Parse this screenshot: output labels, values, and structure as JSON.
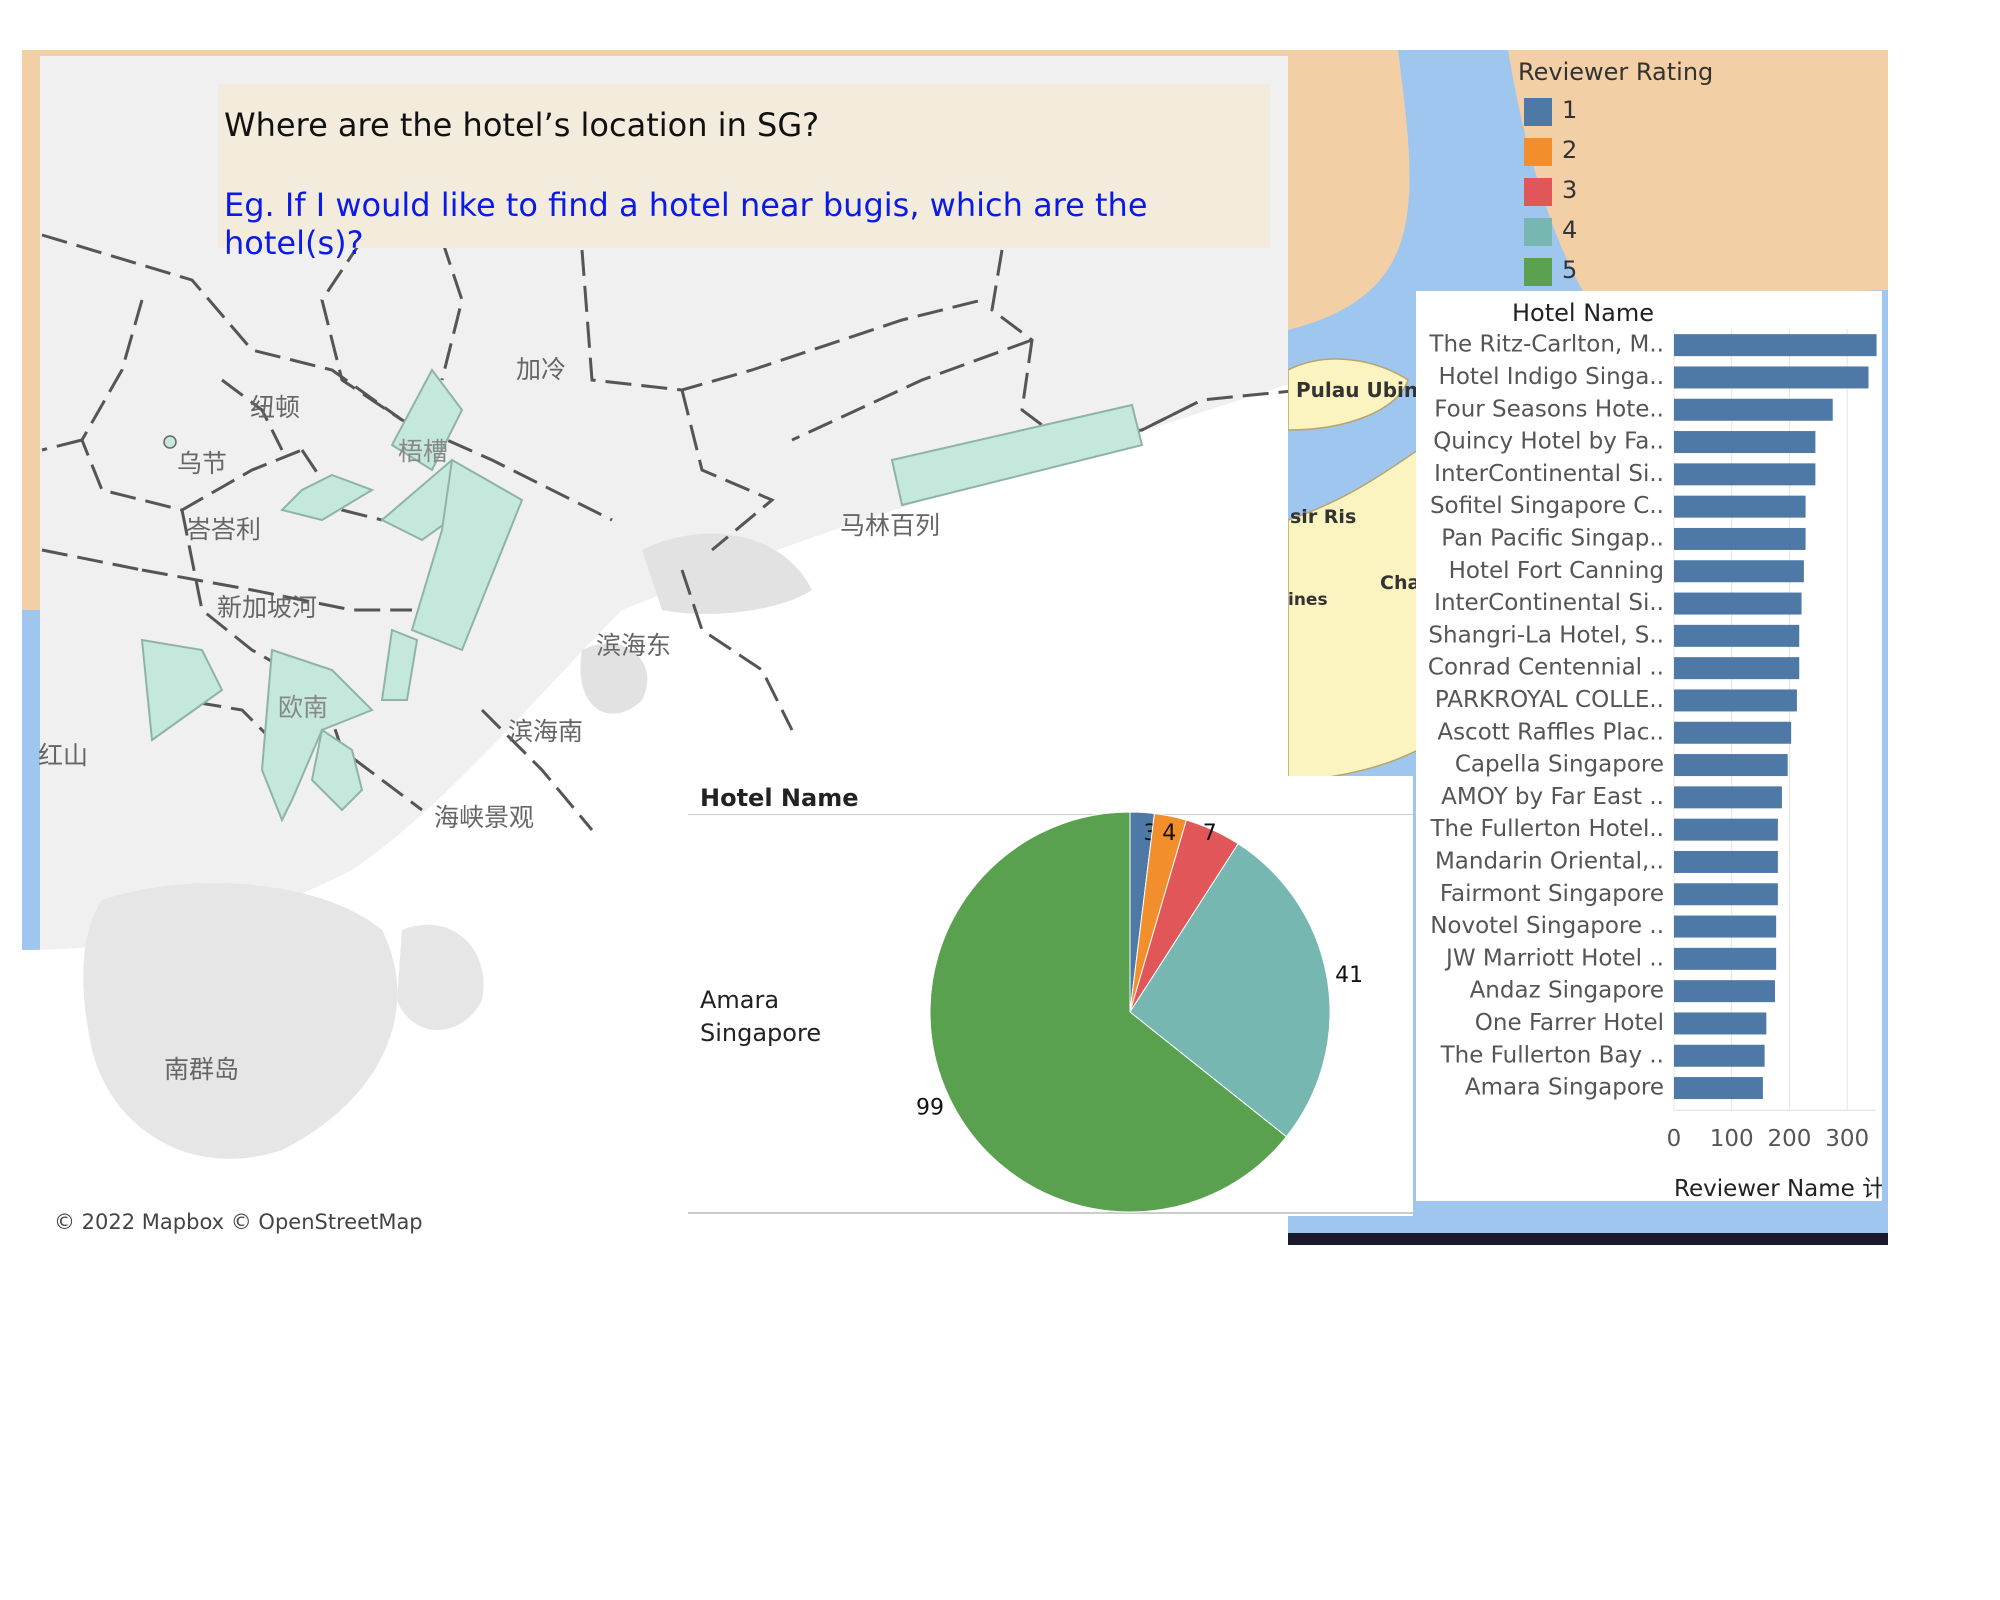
{
  "question": {
    "title": "Where are the hotel’s location in SG?",
    "example": "Eg. If I would like to find a hotel near bugis, which are the hotel(s)?"
  },
  "map": {
    "attribution": "© 2022 Mapbox © OpenStreetMap",
    "place_labels": [
      {
        "id": "newton",
        "text": "纽顿"
      },
      {
        "id": "orchard",
        "text": "乌节"
      },
      {
        "id": "tanglin",
        "text": "峇峇利"
      },
      {
        "id": "kallang",
        "text": "加冷"
      },
      {
        "id": "rochor",
        "text": "梧槽"
      },
      {
        "id": "singapore_river",
        "text": "新加坡河"
      },
      {
        "id": "marine_parade",
        "text": "马林百列"
      },
      {
        "id": "marina_east",
        "text": "滨海东"
      },
      {
        "id": "marina_south",
        "text": "滨海南"
      },
      {
        "id": "outram",
        "text": "欧南"
      },
      {
        "id": "bukit_merah",
        "text": "红山"
      },
      {
        "id": "straits_view",
        "text": "海峡景观"
      },
      {
        "id": "southern_islands",
        "text": "南群岛"
      }
    ],
    "inset_labels": [
      "Pulau Ubin",
      "sir Ris",
      "Cha",
      "ines"
    ]
  },
  "colors": {
    "rating_1": "#4e79a7",
    "rating_2": "#f28e2b",
    "rating_3": "#e15759",
    "rating_4": "#76b7b2",
    "rating_5": "#59a14f",
    "bar": "#4e79a7",
    "map_water": "#9ec6ef",
    "map_land": "#f3cfa6",
    "map_base": "#f0f0f0",
    "region_fill": "#c5e8dc",
    "question_blue": "#0a1be8",
    "question_box": "#f3ecdd"
  },
  "legend": {
    "title": "Reviewer Rating",
    "items": [
      {
        "label": "1",
        "color": "#4e79a7"
      },
      {
        "label": "2",
        "color": "#f28e2b"
      },
      {
        "label": "3",
        "color": "#e15759"
      },
      {
        "label": "4",
        "color": "#76b7b2"
      },
      {
        "label": "5",
        "color": "#59a14f"
      }
    ]
  },
  "pie_panel": {
    "header": "Hotel Name",
    "row_label": "Amara Singapore"
  },
  "bar_panel": {
    "header": "Hotel Name"
  },
  "chart_data": [
    {
      "type": "pie",
      "title": "",
      "category": "Amara Singapore",
      "slices": [
        {
          "label": "1",
          "value": 3,
          "color": "#4e79a7"
        },
        {
          "label": "2",
          "value": 4,
          "color": "#f28e2b"
        },
        {
          "label": "3",
          "value": 7,
          "color": "#e15759"
        },
        {
          "label": "4",
          "value": 41,
          "color": "#76b7b2"
        },
        {
          "label": "5",
          "value": 99,
          "color": "#59a14f"
        }
      ],
      "data_labels": [
        "3",
        "4",
        "7",
        "41",
        "99"
      ]
    },
    {
      "type": "bar",
      "orientation": "horizontal",
      "title": "",
      "ylabel": "Hotel Name",
      "xlabel": "Reviewer Name 计..",
      "xlim": [
        0,
        350
      ],
      "xticks": [
        0,
        100,
        200,
        300
      ],
      "grid": true,
      "categories": [
        "The Ritz-Carlton, M..",
        "Hotel Indigo Singa..",
        "Four Seasons Hote..",
        "Quincy Hotel by Fa..",
        "InterContinental Si..",
        "Sofitel Singapore C..",
        "Pan Pacific Singap..",
        "Hotel Fort Canning",
        "InterContinental Si..",
        "Shangri-La Hotel, S..",
        "Conrad Centennial ..",
        "PARKROYAL COLLE..",
        "Ascott Raffles Plac..",
        "Capella Singapore",
        "AMOY by Far East ..",
        "The Fullerton Hotel..",
        "Mandarin Oriental,..",
        "Fairmont Singapore",
        "Novotel Singapore ..",
        "JW Marriott Hotel ..",
        "Andaz Singapore",
        "One Farrer Hotel",
        "The Fullerton Bay ..",
        "Amara Singapore"
      ],
      "values": [
        351,
        337,
        275,
        245,
        245,
        228,
        228,
        225,
        221,
        217,
        217,
        213,
        203,
        197,
        187,
        180,
        180,
        180,
        177,
        177,
        175,
        160,
        157,
        154
      ]
    }
  ]
}
